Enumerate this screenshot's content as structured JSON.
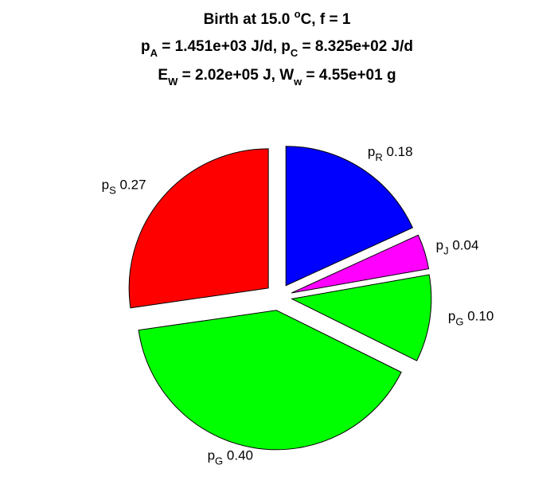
{
  "chart_data": {
    "type": "pie",
    "title": {
      "line1": {
        "pre": "Birth at 15.0 ",
        "sup": "o",
        "post": "C, f = 1"
      },
      "line2": [
        {
          "t": "p",
          "sub": "A",
          "post": " = 1.451e+03 J/d, "
        },
        {
          "t": "p",
          "sub": "C",
          "post": " = 8.325e+02 J/d"
        }
      ],
      "line3": [
        {
          "t": "E",
          "sub": "W",
          "post": " = 2.02e+05 J, "
        },
        {
          "t": "W",
          "sub": "w",
          "post": " = 4.55e+01 g"
        }
      ]
    },
    "slices": [
      {
        "symbol": "p",
        "sub": "R",
        "value": "0.18",
        "share": 0.18,
        "color": "#0000ff"
      },
      {
        "symbol": "p",
        "sub": "J",
        "value": "0.04",
        "share": 0.04,
        "color": "#ff00ff"
      },
      {
        "symbol": "p",
        "sub": "G",
        "value": "0.10",
        "share": 0.1,
        "color": "#00ff00"
      },
      {
        "symbol": "p",
        "sub": "G",
        "value": "0.40",
        "share": 0.4,
        "color": "#00ff00"
      },
      {
        "symbol": "p",
        "sub": "S",
        "value": "0.27",
        "share": 0.27,
        "color": "#ff0000"
      }
    ]
  }
}
